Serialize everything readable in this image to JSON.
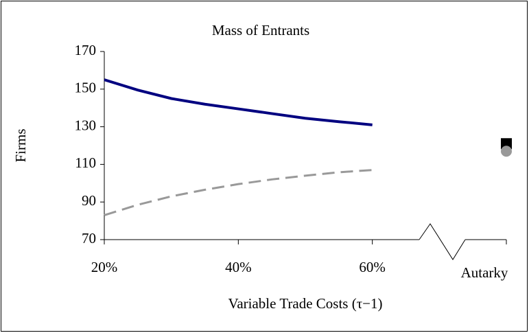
{
  "chart_data": {
    "type": "line",
    "title": "Mass of Entrants",
    "xlabel": "Variable Trade Costs (τ−1)",
    "ylabel": "Firms",
    "xlim": [
      20,
      80
    ],
    "ylim": [
      70,
      170
    ],
    "xticks": [
      {
        "value": 20,
        "label": "20%"
      },
      {
        "value": 40,
        "label": "40%"
      },
      {
        "value": 60,
        "label": "60%"
      },
      {
        "value": 80,
        "label": "Autarky"
      }
    ],
    "yticks": [
      70,
      90,
      110,
      130,
      150,
      170
    ],
    "grid": false,
    "series": [
      {
        "color": "#000080",
        "style": "solid",
        "x": [
          20,
          25,
          30,
          35,
          40,
          45,
          50,
          55,
          60
        ],
        "values": [
          155,
          149.5,
          145,
          142,
          139.5,
          137,
          134.5,
          132.7,
          131
        ]
      },
      {
        "color": "#999999",
        "style": "dashed",
        "x": [
          20,
          25,
          30,
          35,
          40,
          45,
          50,
          55,
          60
        ],
        "values": [
          83,
          88.5,
          93,
          96.5,
          99.5,
          102,
          104,
          105.8,
          107
        ]
      },
      {
        "color": "#000000",
        "style": "marker",
        "marker": "square",
        "x": [
          80
        ],
        "values": [
          121
        ]
      },
      {
        "color": "#999999",
        "style": "marker",
        "marker": "circle",
        "x": [
          80
        ],
        "values": [
          117
        ]
      }
    ]
  }
}
